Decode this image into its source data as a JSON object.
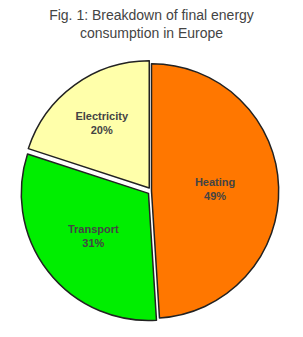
{
  "chart_data": {
    "type": "pie",
    "title": "Fig. 1: Breakdown of final energy\nconsumption in Europe",
    "categories": [
      "Heating",
      "Transport",
      "Electricity"
    ],
    "values": [
      49,
      31,
      20
    ],
    "value_labels": [
      "49%",
      "31%",
      "20%"
    ],
    "data_labels": true,
    "colors": [
      "#FF7700",
      "#00EE00",
      "#FFFFAA"
    ],
    "legend": false
  }
}
